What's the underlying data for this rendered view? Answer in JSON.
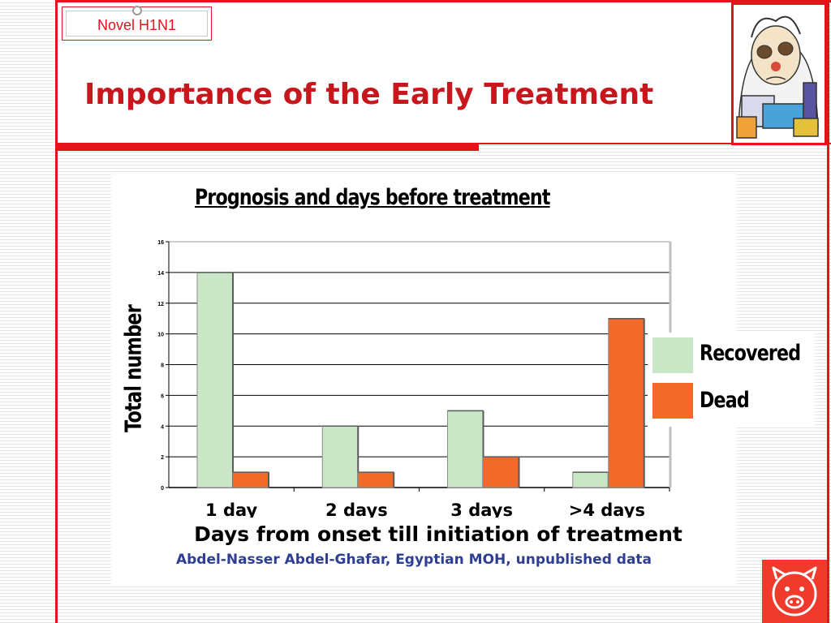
{
  "slide": {
    "badge": "Novel H1N1",
    "title": "Importance of the Early Treatment",
    "source": "Abdel-Nasser Abdel-Ghafar, Egyptian MOH, unpublished data",
    "cartoon_icon": "sick-person-icon",
    "corner_icon": "pig-face-icon"
  },
  "colors": {
    "accent_red": "#e3141b",
    "title_red": "#c8161d",
    "recovered": "#c9e6c6",
    "dead": "#f26a2a"
  },
  "chart_data": {
    "type": "bar",
    "title": "Prognosis and days before treatment",
    "xlabel": "Days from onset till initiation of treatment",
    "ylabel": "Total number",
    "categories": [
      "1 day",
      "2 days",
      "3 days",
      ">4 days"
    ],
    "series": [
      {
        "name": "Recovered",
        "values": [
          14,
          4,
          5,
          1
        ],
        "color": "#c9e6c6"
      },
      {
        "name": "Dead",
        "values": [
          1,
          1,
          2,
          11
        ],
        "color": "#f26a2a"
      }
    ],
    "ylim": [
      0,
      16
    ],
    "yticks": [
      "0",
      "2",
      "4",
      "6",
      "8",
      "10",
      "12",
      "14",
      "16"
    ],
    "grid": true,
    "legend": "right"
  }
}
